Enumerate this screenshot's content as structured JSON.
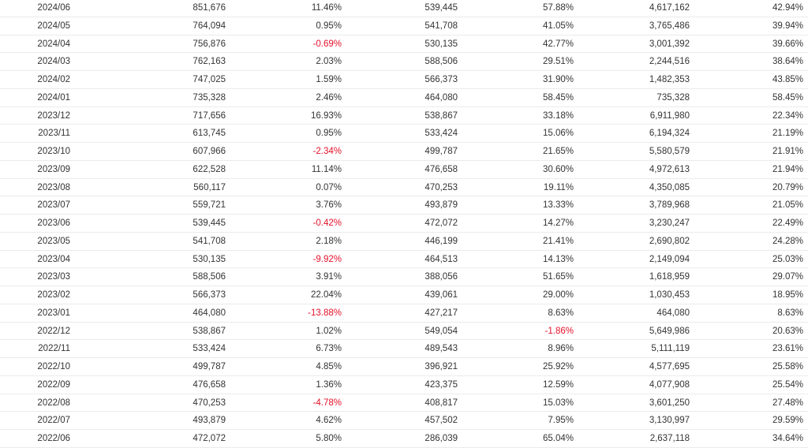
{
  "colors": {
    "text": "#333333",
    "negative": "#e4112a",
    "divider": "#ebebeb"
  },
  "rows": [
    {
      "month": "2024/06",
      "v1": "851,676",
      "p1": "11.46%",
      "v2": "539,445",
      "p2": "57.88%",
      "v3": "4,617,162",
      "p3": "42.94%"
    },
    {
      "month": "2024/05",
      "v1": "764,094",
      "p1": "0.95%",
      "v2": "541,708",
      "p2": "41.05%",
      "v3": "3,765,486",
      "p3": "39.94%"
    },
    {
      "month": "2024/04",
      "v1": "756,876",
      "p1": "-0.69%",
      "v2": "530,135",
      "p2": "42.77%",
      "v3": "3,001,392",
      "p3": "39.66%"
    },
    {
      "month": "2024/03",
      "v1": "762,163",
      "p1": "2.03%",
      "v2": "588,506",
      "p2": "29.51%",
      "v3": "2,244,516",
      "p3": "38.64%"
    },
    {
      "month": "2024/02",
      "v1": "747,025",
      "p1": "1.59%",
      "v2": "566,373",
      "p2": "31.90%",
      "v3": "1,482,353",
      "p3": "43.85%"
    },
    {
      "month": "2024/01",
      "v1": "735,328",
      "p1": "2.46%",
      "v2": "464,080",
      "p2": "58.45%",
      "v3": "735,328",
      "p3": "58.45%"
    },
    {
      "month": "2023/12",
      "v1": "717,656",
      "p1": "16.93%",
      "v2": "538,867",
      "p2": "33.18%",
      "v3": "6,911,980",
      "p3": "22.34%"
    },
    {
      "month": "2023/11",
      "v1": "613,745",
      "p1": "0.95%",
      "v2": "533,424",
      "p2": "15.06%",
      "v3": "6,194,324",
      "p3": "21.19%"
    },
    {
      "month": "2023/10",
      "v1": "607,966",
      "p1": "-2.34%",
      "v2": "499,787",
      "p2": "21.65%",
      "v3": "5,580,579",
      "p3": "21.91%"
    },
    {
      "month": "2023/09",
      "v1": "622,528",
      "p1": "11.14%",
      "v2": "476,658",
      "p2": "30.60%",
      "v3": "4,972,613",
      "p3": "21.94%"
    },
    {
      "month": "2023/08",
      "v1": "560,117",
      "p1": "0.07%",
      "v2": "470,253",
      "p2": "19.11%",
      "v3": "4,350,085",
      "p3": "20.79%"
    },
    {
      "month": "2023/07",
      "v1": "559,721",
      "p1": "3.76%",
      "v2": "493,879",
      "p2": "13.33%",
      "v3": "3,789,968",
      "p3": "21.05%"
    },
    {
      "month": "2023/06",
      "v1": "539,445",
      "p1": "-0.42%",
      "v2": "472,072",
      "p2": "14.27%",
      "v3": "3,230,247",
      "p3": "22.49%"
    },
    {
      "month": "2023/05",
      "v1": "541,708",
      "p1": "2.18%",
      "v2": "446,199",
      "p2": "21.41%",
      "v3": "2,690,802",
      "p3": "24.28%"
    },
    {
      "month": "2023/04",
      "v1": "530,135",
      "p1": "-9.92%",
      "v2": "464,513",
      "p2": "14.13%",
      "v3": "2,149,094",
      "p3": "25.03%"
    },
    {
      "month": "2023/03",
      "v1": "588,506",
      "p1": "3.91%",
      "v2": "388,056",
      "p2": "51.65%",
      "v3": "1,618,959",
      "p3": "29.07%"
    },
    {
      "month": "2023/02",
      "v1": "566,373",
      "p1": "22.04%",
      "v2": "439,061",
      "p2": "29.00%",
      "v3": "1,030,453",
      "p3": "18.95%"
    },
    {
      "month": "2023/01",
      "v1": "464,080",
      "p1": "-13.88%",
      "v2": "427,217",
      "p2": "8.63%",
      "v3": "464,080",
      "p3": "8.63%"
    },
    {
      "month": "2022/12",
      "v1": "538,867",
      "p1": "1.02%",
      "v2": "549,054",
      "p2": "-1.86%",
      "v3": "5,649,986",
      "p3": "20.63%"
    },
    {
      "month": "2022/11",
      "v1": "533,424",
      "p1": "6.73%",
      "v2": "489,543",
      "p2": "8.96%",
      "v3": "5,111,119",
      "p3": "23.61%"
    },
    {
      "month": "2022/10",
      "v1": "499,787",
      "p1": "4.85%",
      "v2": "396,921",
      "p2": "25.92%",
      "v3": "4,577,695",
      "p3": "25.58%"
    },
    {
      "month": "2022/09",
      "v1": "476,658",
      "p1": "1.36%",
      "v2": "423,375",
      "p2": "12.59%",
      "v3": "4,077,908",
      "p3": "25.54%"
    },
    {
      "month": "2022/08",
      "v1": "470,253",
      "p1": "-4.78%",
      "v2": "408,817",
      "p2": "15.03%",
      "v3": "3,601,250",
      "p3": "27.48%"
    },
    {
      "month": "2022/07",
      "v1": "493,879",
      "p1": "4.62%",
      "v2": "457,502",
      "p2": "7.95%",
      "v3": "3,130,997",
      "p3": "29.59%"
    },
    {
      "month": "2022/06",
      "v1": "472,072",
      "p1": "5.80%",
      "v2": "286,039",
      "p2": "65.04%",
      "v3": "2,637,118",
      "p3": "34.64%"
    }
  ]
}
